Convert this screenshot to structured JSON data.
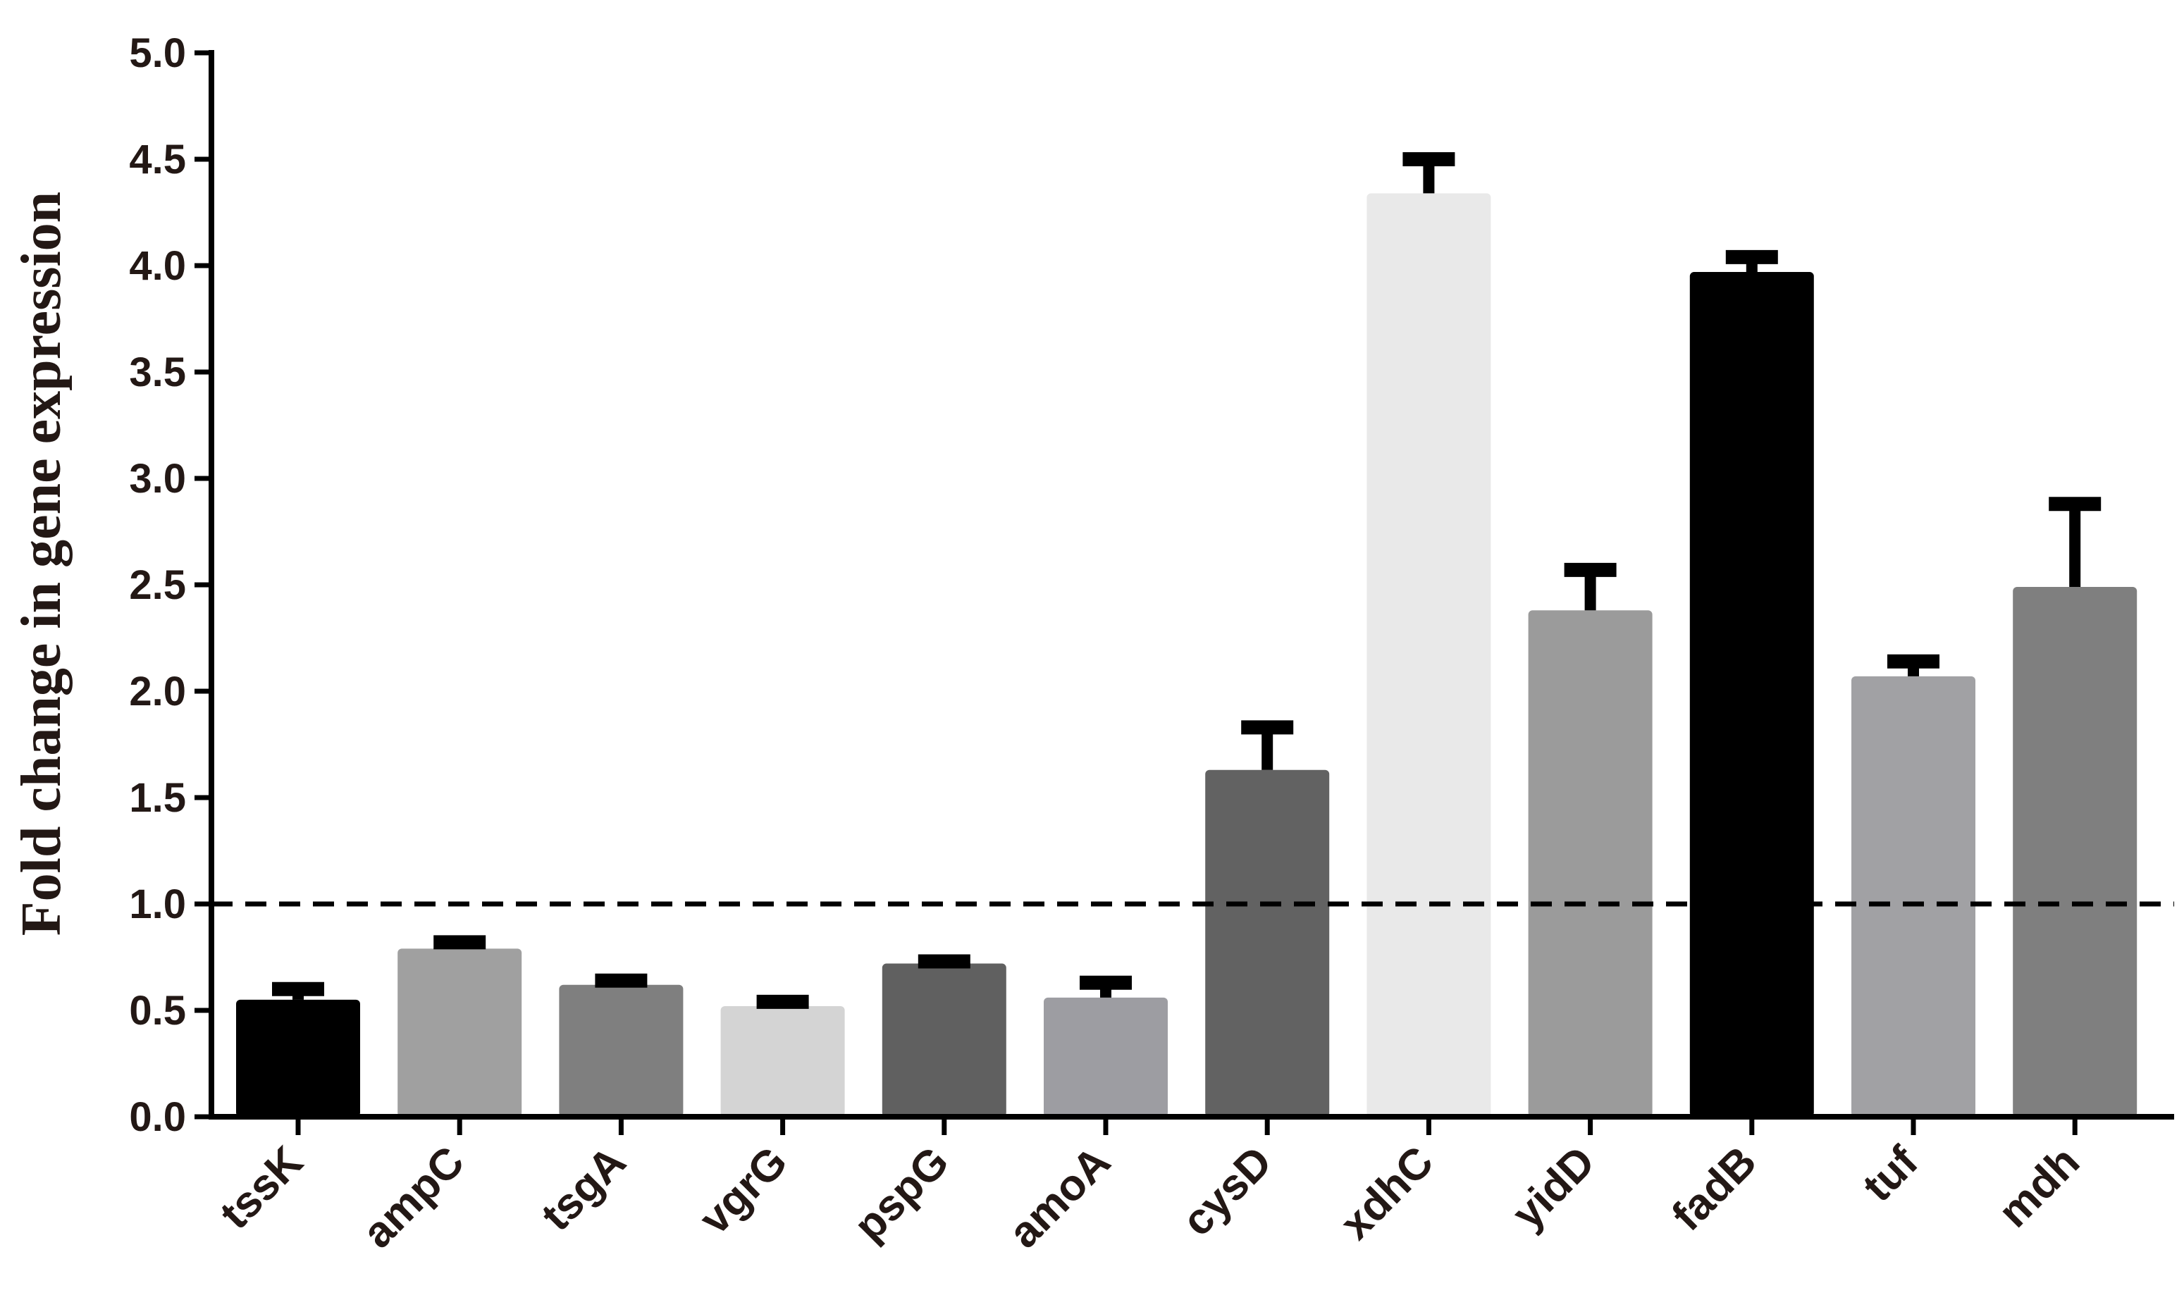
{
  "chart_data": {
    "type": "bar",
    "ylabel": "Fold change in gene expression",
    "xlabel": "",
    "title": "",
    "ylim": [
      0,
      5
    ],
    "yticks": [
      "0.0",
      "0.5",
      "1.0",
      "1.5",
      "2.0",
      "2.5",
      "3.0",
      "3.5",
      "4.0",
      "4.5",
      "5.0"
    ],
    "reference_line": 1.0,
    "categories": [
      "tssK",
      "ampC",
      "tsgA",
      "vgrG",
      "pspG",
      "amoA",
      "cysD",
      "xdhC",
      "yidD",
      "fadB",
      "tuf",
      "mdh"
    ],
    "values": [
      0.55,
      0.79,
      0.62,
      0.52,
      0.72,
      0.56,
      1.63,
      4.34,
      2.38,
      3.97,
      2.07,
      2.49
    ],
    "errors": [
      0.05,
      0.03,
      0.02,
      0.02,
      0.01,
      0.07,
      0.2,
      0.16,
      0.19,
      0.07,
      0.07,
      0.39
    ],
    "bar_colors": [
      "#000000",
      "#a0a0a0",
      "#7f7f7f",
      "#d4d4d4",
      "#606060",
      "#9d9da2",
      "#626262",
      "#e9e9e9",
      "#9b9b9b",
      "#000000",
      "#a1a1a4",
      "#7f7f7f"
    ],
    "grid": false,
    "legend": "none"
  }
}
